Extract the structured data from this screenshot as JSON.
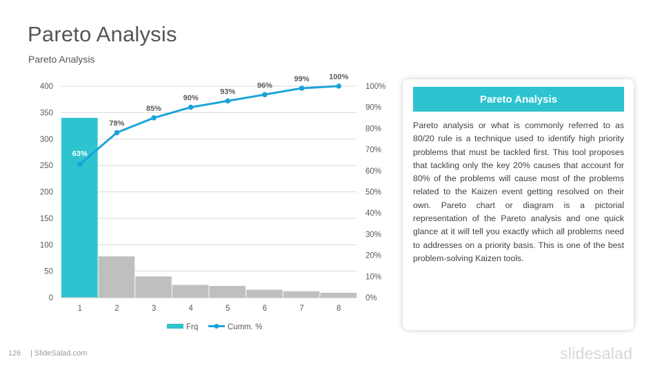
{
  "header": {
    "title": "Pareto Analysis",
    "subtitle": "Pareto Analysis"
  },
  "card": {
    "title": "Pareto Analysis",
    "body": "Pareto analysis or what is commonly referred to as 80/20 rule is a technique used to identify high priority problems that must be tackled first. This tool proposes that tackling only the key 20% causes that account for 80% of the problems will cause most of the problems related to the Kaizen event getting resolved on their own. Pareto chart or diagram is a pictorial representation of the Pareto analysis and one quick glance at it will tell you exactly which all problems need to addresses on a priority basis. This is one of the best problem-solving Kaizen tools."
  },
  "footer": {
    "page_number": "126",
    "site": "| SlideSalad.com",
    "logo_text": "slidesalad"
  },
  "colors": {
    "accent": "#2ec4cf",
    "bar_other": "#bfbfbf",
    "line": "#1ba3d9",
    "highlight_label": "#ffffff"
  },
  "chart_data": {
    "type": "bar",
    "categories": [
      "1",
      "2",
      "3",
      "4",
      "5",
      "6",
      "7",
      "8"
    ],
    "series": [
      {
        "name": "Frq",
        "type": "bar",
        "axis": "left",
        "values": [
          340,
          78,
          40,
          24,
          22,
          15,
          12,
          9
        ]
      },
      {
        "name": "Cumm. %",
        "type": "line",
        "axis": "right",
        "values": [
          63,
          78,
          85,
          90,
          93,
          96,
          99,
          100
        ],
        "labels": [
          "63%",
          "78%",
          "85%",
          "90%",
          "93%",
          "96%",
          "99%",
          "100%"
        ]
      }
    ],
    "y_left": {
      "min": 0,
      "max": 400,
      "ticks": [
        "0",
        "50",
        "100",
        "150",
        "200",
        "250",
        "300",
        "350",
        "400"
      ]
    },
    "y_right": {
      "min": 0,
      "max": 100,
      "ticks": [
        "0%",
        "10%",
        "20%",
        "30%",
        "40%",
        "50%",
        "60%",
        "70%",
        "80%",
        "90%",
        "100%"
      ]
    },
    "grid": true,
    "legend_position": "bottom"
  }
}
